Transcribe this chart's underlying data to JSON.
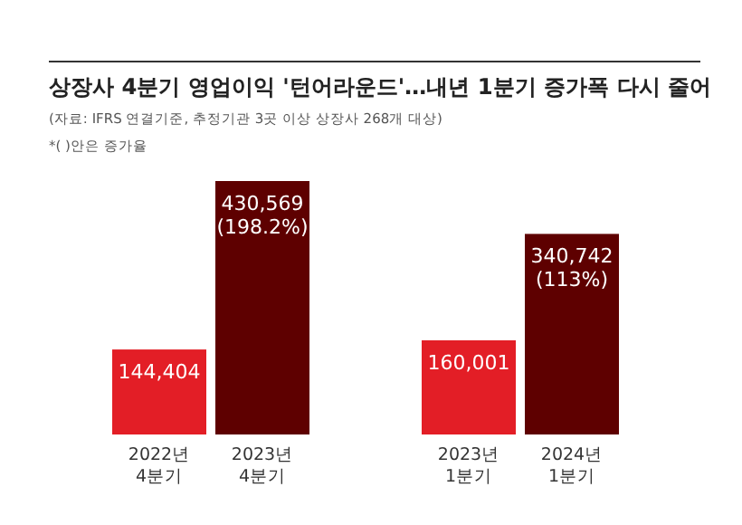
{
  "chart_data": {
    "type": "bar",
    "title": "상장사 4분기 영업이익 '턴어라운드'…내년 1분기 증가폭 다시 줄어",
    "categories": [
      "2022년\n4분기",
      "2023년\n4분기",
      null,
      "2023년\n1분기",
      "2024년\n1분기"
    ],
    "values": [
      144404,
      430569,
      null,
      160001,
      340742
    ],
    "colors": [
      "#e31e26",
      "#5e0000",
      null,
      "#e31e26",
      "#5e0000"
    ],
    "value_labels": [
      "144,404",
      "430,569\n(198.2%)",
      null,
      "160,001",
      "340,742\n(113%)"
    ],
    "annotations": [
      "(자료: IFRS 연결기준, 추정기관 3곳 이상 상장사 268개 대상)",
      "*(   )안은 증가율"
    ]
  }
}
